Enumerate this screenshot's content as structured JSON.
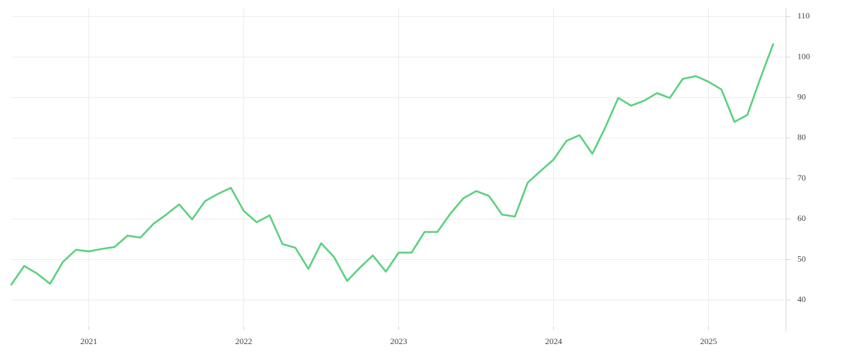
{
  "chart_data": {
    "type": "line",
    "x": [
      2020.5,
      2020.583,
      2020.667,
      2020.75,
      2020.833,
      2020.917,
      2021,
      2021.083,
      2021.167,
      2021.25,
      2021.333,
      2021.417,
      2021.5,
      2021.583,
      2021.667,
      2021.75,
      2021.833,
      2021.917,
      2022,
      2022.083,
      2022.167,
      2022.25,
      2022.333,
      2022.417,
      2022.5,
      2022.583,
      2022.667,
      2022.75,
      2022.833,
      2022.917,
      2023,
      2023.083,
      2023.167,
      2023.25,
      2023.333,
      2023.417,
      2023.5,
      2023.583,
      2023.667,
      2023.75,
      2023.833,
      2023.917,
      2024,
      2024.083,
      2024.167,
      2024.25,
      2024.333,
      2024.417,
      2024.5,
      2024.583,
      2024.667,
      2024.75,
      2024.833,
      2024.917,
      2025,
      2025.083,
      2025.167,
      2025.25,
      2025.333,
      2025.417
    ],
    "values": [
      43.8,
      48.4,
      46.5,
      44.0,
      49.4,
      52.4,
      52.0,
      52.6,
      53.1,
      55.9,
      55.4,
      58.8,
      61.1,
      63.6,
      59.9,
      64.4,
      66.2,
      67.7,
      62.0,
      59.2,
      60.9,
      53.8,
      52.9,
      47.7,
      54.0,
      50.6,
      44.7,
      48.0,
      51.0,
      47.0,
      51.7,
      51.7,
      56.8,
      56.8,
      61.3,
      65.1,
      66.9,
      65.7,
      61.1,
      60.6,
      69.0,
      71.9,
      74.7,
      79.3,
      80.7,
      76.1,
      82.6,
      89.9,
      88.0,
      89.2,
      91.1,
      89.9,
      94.6,
      95.3,
      93.9,
      92.0,
      84.0,
      85.7,
      94.6,
      103.2
    ],
    "color": "#5ad17e",
    "xlim": [
      2020.5,
      2025.5
    ],
    "xticks": [
      2021,
      2022,
      2023,
      2024,
      2025
    ],
    "ylim": [
      34,
      112
    ],
    "yticks": [
      40,
      50,
      60,
      70,
      80,
      90,
      100,
      110
    ],
    "grid": true
  }
}
